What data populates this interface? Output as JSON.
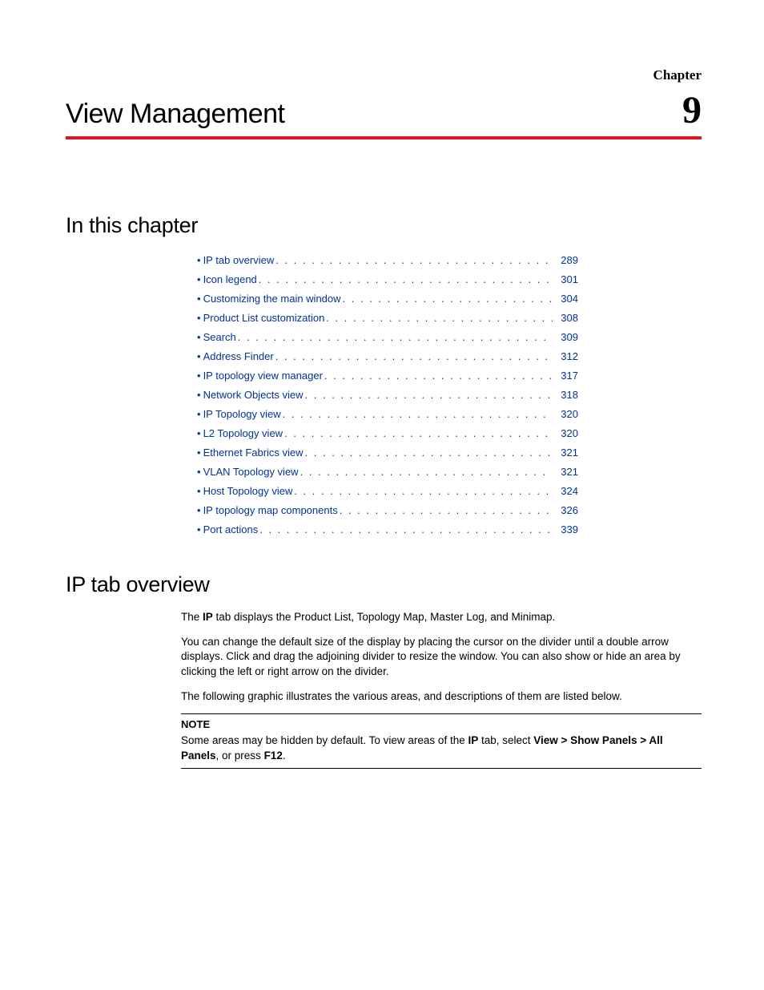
{
  "colors": {
    "rule": "#d71921",
    "link": "#003399",
    "text": "#000000",
    "background": "#ffffff"
  },
  "typography": {
    "body_family": "Arial, Helvetica, sans-serif",
    "serif_family": "\"Times New Roman\", Times, serif",
    "chapter_title_fontsize": 34,
    "chapter_number_fontsize": 48,
    "section_heading_fontsize": 27,
    "body_fontsize": 13.5,
    "toc_fontsize": 13
  },
  "header": {
    "chapter_label": "Chapter",
    "chapter_title": "View Management",
    "chapter_number": "9"
  },
  "sections": {
    "in_chapter_heading": "In this chapter",
    "ip_overview_heading": "IP tab overview"
  },
  "toc": {
    "bullet": "•",
    "items": [
      {
        "label": "IP tab overview",
        "page": "289"
      },
      {
        "label": "Icon legend",
        "page": "301"
      },
      {
        "label": "Customizing the main window",
        "page": "304"
      },
      {
        "label": "Product List customization",
        "page": "308"
      },
      {
        "label": "Search",
        "page": "309"
      },
      {
        "label": "Address Finder",
        "page": "312"
      },
      {
        "label": "IP topology view manager",
        "page": "317"
      },
      {
        "label": "Network Objects view",
        "page": "318"
      },
      {
        "label": "IP Topology view",
        "page": "320"
      },
      {
        "label": "L2 Topology view",
        "page": "320"
      },
      {
        "label": "Ethernet Fabrics view",
        "page": "321"
      },
      {
        "label": "VLAN Topology view",
        "page": "321"
      },
      {
        "label": "Host Topology view",
        "page": "324"
      },
      {
        "label": "IP topology map components",
        "page": "326"
      },
      {
        "label": "Port actions",
        "page": "339"
      }
    ]
  },
  "ip_overview": {
    "para1_pre": "The ",
    "para1_bold": "IP",
    "para1_post": " tab displays the Product List, Topology Map, Master Log, and Minimap.",
    "para2": "You can change the default size of the display by placing the cursor on the divider until a double arrow displays. Click and drag the adjoining divider to resize the window. You can also show or hide an area by clicking the left or right arrow on the divider.",
    "para3": "The following graphic illustrates the various areas, and descriptions of them are listed below.",
    "note_label": "NOTE",
    "note_pre": "Some areas may be hidden by default. To view areas of the ",
    "note_bold1": "IP",
    "note_mid1": " tab, select ",
    "note_bold2": "View > Show Panels > All Panels",
    "note_mid2": ", or press ",
    "note_bold3": "F12",
    "note_post": "."
  }
}
